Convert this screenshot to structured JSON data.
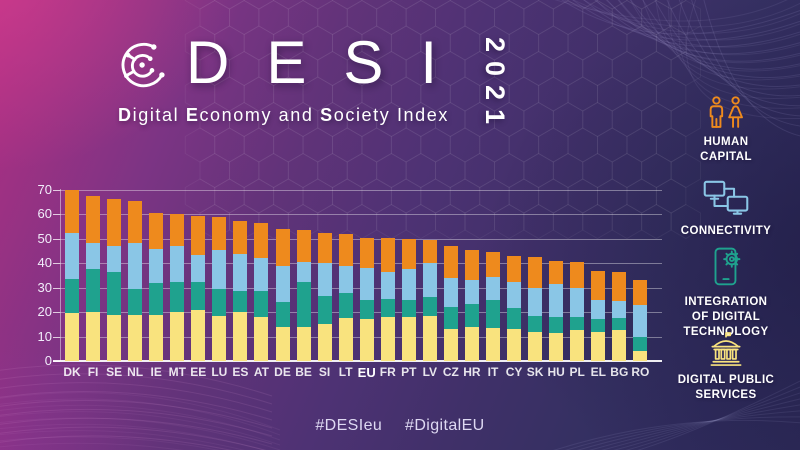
{
  "header": {
    "title": "DESI",
    "year": "2021",
    "subtitle_parts": [
      {
        "text": "D",
        "bold": true
      },
      {
        "text": "igital ",
        "bold": false
      },
      {
        "text": "E",
        "bold": true
      },
      {
        "text": "conomy and ",
        "bold": false
      },
      {
        "text": "S",
        "bold": true
      },
      {
        "text": "ociety Index",
        "bold": false
      }
    ],
    "logo_icon": "desi-circuit-circle-logo"
  },
  "legend": [
    {
      "icon": "people-icon",
      "color": "#EE8A1D",
      "lines": [
        "HUMAN",
        "CAPITAL"
      ]
    },
    {
      "icon": "connected-monitors-icon",
      "color": "#8AC6E6",
      "lines": [
        "CONNECTIVITY"
      ]
    },
    {
      "icon": "phone-gear-icon",
      "color": "#1FA28E",
      "lines": [
        "INTEGRATION",
        "OF DIGITAL",
        "TECHNOLOGY"
      ]
    },
    {
      "icon": "government-building-icon",
      "color": "#F9E37E",
      "lines": [
        "DIGITAL PUBLIC",
        "SERVICES"
      ]
    }
  ],
  "chart_data": {
    "type": "bar",
    "stacked": true,
    "title": "DESI 2021 — Digital Economy and Society Index, overall score by country",
    "categories": [
      "DK",
      "FI",
      "SE",
      "NL",
      "IE",
      "MT",
      "EE",
      "LU",
      "ES",
      "AT",
      "DE",
      "BE",
      "SI",
      "LT",
      "EU",
      "FR",
      "PT",
      "LV",
      "CZ",
      "HR",
      "IT",
      "CY",
      "SK",
      "HU",
      "PL",
      "EL",
      "BG",
      "RO"
    ],
    "emphasized_category": "EU",
    "stack_order": "bottom-to-top",
    "series": [
      {
        "name": "Digital Public Services",
        "color": "#F9E37E",
        "values": [
          19.5,
          20,
          19,
          19,
          19,
          20,
          21,
          18.5,
          20,
          18,
          14,
          14,
          15,
          17.5,
          17,
          18,
          18,
          18.5,
          13,
          14,
          13.5,
          13,
          12,
          11.5,
          12.5,
          12,
          12.5,
          4
        ]
      },
      {
        "name": "Integration of Digital Technology",
        "color": "#1FA28E",
        "values": [
          14,
          17.5,
          17.5,
          10.5,
          13,
          12.5,
          11.5,
          11,
          8.5,
          10.5,
          10,
          18.5,
          11.5,
          10.5,
          8,
          7.5,
          7,
          7.5,
          9,
          9.5,
          11.5,
          8.5,
          6.5,
          6.5,
          5.5,
          5,
          5,
          6
        ]
      },
      {
        "name": "Connectivity",
        "color": "#8AC6E6",
        "values": [
          19,
          11,
          10.5,
          19,
          14,
          14.5,
          11,
          16,
          15.5,
          13.5,
          15,
          8,
          13.5,
          11,
          13,
          11,
          12.5,
          14,
          12,
          9.5,
          9.5,
          11,
          11.5,
          13.5,
          12,
          8,
          7,
          13
        ]
      },
      {
        "name": "Human Capital",
        "color": "#EE8A1D",
        "values": [
          17.5,
          19,
          19.5,
          17,
          14.5,
          13,
          16,
          13.5,
          13.5,
          14.5,
          15,
          13,
          12.5,
          13,
          12.5,
          14,
          12.5,
          9.5,
          13,
          12.5,
          10,
          10.5,
          12.5,
          9.5,
          10.5,
          12,
          12,
          10
        ]
      }
    ],
    "totals": [
      70,
      67.5,
      66.5,
      65.5,
      60.5,
      60,
      59.5,
      59,
      57.5,
      56.5,
      54,
      53.5,
      52.5,
      52,
      50.5,
      50.5,
      50,
      49.5,
      47,
      45.5,
      44.5,
      43,
      42.5,
      41,
      40.5,
      37,
      36.5,
      33
    ],
    "ylim": [
      0,
      70
    ],
    "yticks": [
      0,
      10,
      20,
      30,
      40,
      50,
      60,
      70
    ],
    "grid": true,
    "legend_position": "right"
  },
  "footer": {
    "hashtags": [
      "#DESIeu",
      "#DigitalEU"
    ]
  },
  "colors": {
    "human_capital": "#EE8A1D",
    "connectivity": "#8AC6E6",
    "integration_of_digital_technology": "#1FA28E",
    "digital_public_services": "#F9E37E",
    "background_left": "#B12E83",
    "background_right": "#2C2957",
    "text": "#FFFFFF"
  }
}
